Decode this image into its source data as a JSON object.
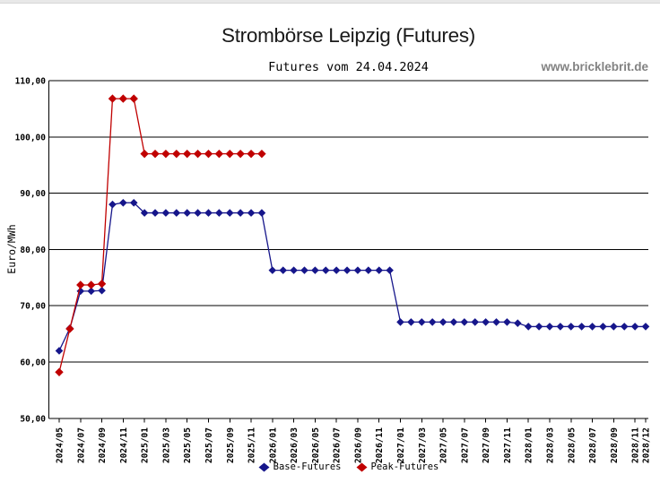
{
  "header": {
    "title": "Strombörse Leipzig (Futures)",
    "subtitle": "Futures vom 24.04.2024",
    "watermark": "www.bricklebrit.de"
  },
  "chart_data": {
    "type": "line",
    "title": "Strombörse Leipzig (Futures)",
    "subtitle": "Futures vom 24.04.2024",
    "xlabel": "",
    "ylabel": "Euro/MWh",
    "ylim": [
      50,
      110
    ],
    "grid": "horizontal",
    "legend_position": "bottom",
    "marker": "diamond",
    "background": "#ffffff",
    "axis_color": "#000000",
    "y_ticks": [
      {
        "value": 110,
        "label": "110,00"
      },
      {
        "value": 100,
        "label": "100,00"
      },
      {
        "value": 90,
        "label": "90,00"
      },
      {
        "value": 80,
        "label": "80,00"
      },
      {
        "value": 70,
        "label": "70,00"
      },
      {
        "value": 60,
        "label": "60,00"
      },
      {
        "value": 50,
        "label": "50,00"
      }
    ],
    "x_tick_every": 2,
    "x_tick_include_last": true,
    "x": [
      "2024/05",
      "2024/06",
      "2024/07",
      "2024/08",
      "2024/09",
      "2024/10",
      "2024/11",
      "2024/12",
      "2025/01",
      "2025/02",
      "2025/03",
      "2025/04",
      "2025/05",
      "2025/06",
      "2025/07",
      "2025/08",
      "2025/09",
      "2025/10",
      "2025/11",
      "2025/12",
      "2026/01",
      "2026/02",
      "2026/03",
      "2026/04",
      "2026/05",
      "2026/06",
      "2026/07",
      "2026/08",
      "2026/09",
      "2026/10",
      "2026/11",
      "2026/12",
      "2027/01",
      "2027/02",
      "2027/03",
      "2027/04",
      "2027/05",
      "2027/06",
      "2027/07",
      "2027/08",
      "2027/09",
      "2027/10",
      "2027/11",
      "2027/12",
      "2028/01",
      "2028/02",
      "2028/03",
      "2028/04",
      "2028/05",
      "2028/06",
      "2028/07",
      "2028/08",
      "2028/09",
      "2028/10",
      "2028/11",
      "2028/12"
    ],
    "series": [
      {
        "name": "Base-Futures",
        "color": "#16168b",
        "values": [
          62.0,
          66.0,
          72.6,
          72.6,
          72.7,
          88.0,
          88.3,
          88.3,
          86.5,
          86.5,
          86.5,
          86.5,
          86.5,
          86.5,
          86.5,
          86.5,
          86.5,
          86.5,
          86.5,
          86.5,
          76.3,
          76.3,
          76.3,
          76.3,
          76.3,
          76.3,
          76.3,
          76.3,
          76.3,
          76.3,
          76.3,
          76.3,
          67.1,
          67.1,
          67.1,
          67.1,
          67.1,
          67.1,
          67.1,
          67.1,
          67.1,
          67.1,
          67.1,
          66.9,
          66.3,
          66.3,
          66.3,
          66.3,
          66.3,
          66.3,
          66.3,
          66.3,
          66.3,
          66.3,
          66.3,
          66.3
        ]
      },
      {
        "name": "Peak-Futures",
        "color": "#c00000",
        "values": [
          58.2,
          65.9,
          73.7,
          73.7,
          73.9,
          106.8,
          106.8,
          106.8,
          97.0,
          97.0,
          97.0,
          97.0,
          97.0,
          97.0,
          97.0,
          97.0,
          97.0,
          97.0,
          97.0,
          97.0
        ]
      }
    ]
  }
}
